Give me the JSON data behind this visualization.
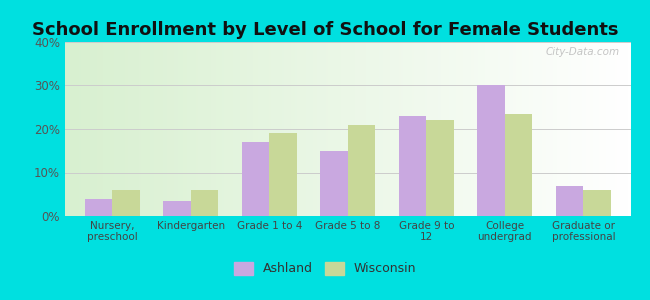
{
  "title": "School Enrollment by Level of School for Female Students",
  "categories": [
    "Nursery,\npreschool",
    "Kindergarten",
    "Grade 1 to 4",
    "Grade 5 to 8",
    "Grade 9 to\n12",
    "College\nundergrad",
    "Graduate or\nprofessional"
  ],
  "ashland": [
    4,
    3.5,
    17,
    15,
    23,
    30,
    7
  ],
  "wisconsin": [
    6,
    6,
    19,
    21,
    22,
    23.5,
    6
  ],
  "ashland_color": "#c9a8e0",
  "wisconsin_color": "#c8d898",
  "ylim": [
    0,
    40
  ],
  "yticks": [
    0,
    10,
    20,
    30,
    40
  ],
  "ytick_labels": [
    "0%",
    "10%",
    "20%",
    "30%",
    "40%"
  ],
  "background_color": "#00e0e0",
  "title_fontsize": 13,
  "legend_labels": [
    "Ashland",
    "Wisconsin"
  ],
  "bar_width": 0.35,
  "watermark": "City-Data.com"
}
